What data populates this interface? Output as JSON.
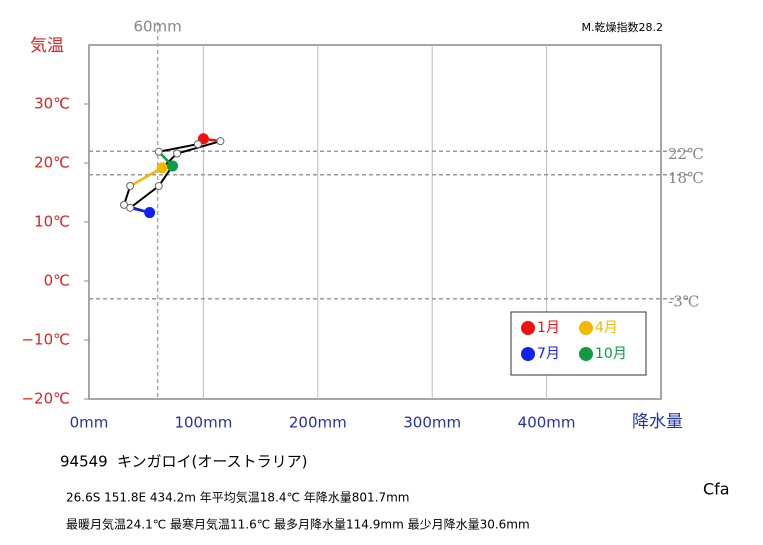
{
  "chart_data": {
    "type": "climograph",
    "x_label": "降水量",
    "y_label": "気温",
    "aridity": "M.乾燥指数28.2",
    "x": [
      100,
      114.9,
      77,
      64,
      36,
      30.6,
      53,
      36,
      61,
      73,
      61,
      95.2
    ],
    "values": [
      24.1,
      23.7,
      21.6,
      19.2,
      16.1,
      12.9,
      11.6,
      12.4,
      16.1,
      19.5,
      21.9,
      23.2
    ],
    "line_color": "#000000",
    "highlights": [
      {
        "name": "1月",
        "color": "#ee1111",
        "index": 0
      },
      {
        "name": "4月",
        "color": "#f5b800",
        "index": 3
      },
      {
        "name": "7月",
        "color": "#1122ee",
        "index": 6
      },
      {
        "name": "10月",
        "color": "#119944",
        "index": 9
      }
    ],
    "xlim": [
      0,
      500
    ],
    "ylim": [
      -20,
      40
    ],
    "xticks": [
      {
        "value": 0,
        "label": "0mm"
      },
      {
        "value": 100,
        "label": "100mm"
      },
      {
        "value": 200,
        "label": "200mm"
      },
      {
        "value": 300,
        "label": "300mm"
      },
      {
        "value": 400,
        "label": "400mm"
      }
    ],
    "yticks": [
      {
        "value": -20,
        "label": "−20℃"
      },
      {
        "value": -10,
        "label": "−10℃"
      },
      {
        "value": 0,
        "label": "0℃"
      },
      {
        "value": 10,
        "label": "10℃"
      },
      {
        "value": 20,
        "label": "20℃"
      },
      {
        "value": 30,
        "label": "30℃"
      }
    ],
    "x_ref": {
      "value": 60,
      "label": "60mm"
    },
    "y_refs": [
      {
        "value": 22,
        "label": "22℃"
      },
      {
        "value": 18,
        "label": "18℃"
      },
      {
        "value": -3,
        "label": "-3℃"
      }
    ],
    "grid": "x",
    "station_id": "94549",
    "station_name": "キンガロイ(オーストラリア)",
    "info_line1": "26.6S  151.8E  434.2m  年平均気温18.4℃ 年降水量801.7mm",
    "info_line2": "最暖月気温24.1℃ 最寒月気温11.6℃ 最多月降水量114.9mm 最少月降水量30.6mm",
    "climate_class": "Cfa"
  }
}
